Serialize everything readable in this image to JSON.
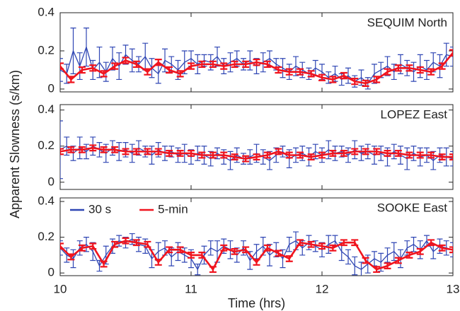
{
  "chart_data": [
    {
      "type": "line",
      "title": "SEQUIM North",
      "xlim": [
        10,
        13
      ],
      "ylim": [
        -0.015,
        0.4
      ],
      "yticks": [
        0,
        0.2,
        0.4
      ],
      "series": [
        {
          "color": "#2f46b4",
          "x": [
            10,
            10.05,
            10.1,
            10.15,
            10.2,
            10.25,
            10.3,
            10.35,
            10.4,
            10.45,
            10.5,
            10.55,
            10.6,
            10.65,
            10.7,
            10.75,
            10.8,
            10.85,
            10.9,
            10.95,
            11,
            11.05,
            11.1,
            11.15,
            11.2,
            11.25,
            11.3,
            11.35,
            11.4,
            11.45,
            11.5,
            11.55,
            11.6,
            11.65,
            11.7,
            11.75,
            11.8,
            11.85,
            11.9,
            11.95,
            12,
            12.05,
            12.1,
            12.15,
            12.2,
            12.25,
            12.3,
            12.35,
            12.4,
            12.45,
            12.5,
            12.55,
            12.6,
            12.65,
            12.7,
            12.75,
            12.8,
            12.85,
            12.9,
            12.95,
            13
          ],
          "values": [
            0.1,
            0.08,
            0.2,
            0.12,
            0.22,
            0.1,
            0.14,
            0.09,
            0.16,
            0.12,
            0.18,
            0.15,
            0.13,
            0.17,
            0.11,
            0.08,
            0.15,
            0.13,
            0.1,
            0.14,
            0.16,
            0.13,
            0.15,
            0.14,
            0.17,
            0.12,
            0.14,
            0.16,
            0.13,
            0.15,
            0.12,
            0.14,
            0.16,
            0.13,
            0.11,
            0.09,
            0.12,
            0.1,
            0.08,
            0.11,
            0.09,
            0.06,
            0.08,
            0.05,
            0.07,
            0.04,
            0.06,
            0.03,
            0.08,
            0.1,
            0.12,
            0.09,
            0.13,
            0.11,
            0.09,
            0.12,
            0.1,
            0.14,
            0.12,
            0.18,
            0.17
          ],
          "errors": [
            0.06,
            0.05,
            0.12,
            0.07,
            0.1,
            0.05,
            0.08,
            0.05,
            0.06,
            0.07,
            0.05,
            0.06,
            0.04,
            0.07,
            0.05,
            0.05,
            0.06,
            0.04,
            0.05,
            0.06,
            0.04,
            0.05,
            0.03,
            0.04,
            0.05,
            0.04,
            0.05,
            0.04,
            0.03,
            0.05,
            0.04,
            0.05,
            0.04,
            0.03,
            0.05,
            0.04,
            0.05,
            0.04,
            0.03,
            0.04,
            0.04,
            0.03,
            0.04,
            0.03,
            0.04,
            0.03,
            0.04,
            0.03,
            0.05,
            0.04,
            0.05,
            0.04,
            0.05,
            0.04,
            0.05,
            0.06,
            0.05,
            0.05,
            0.06,
            0.06,
            0.05
          ]
        },
        {
          "color": "#f0141e",
          "x": [
            10,
            10.083,
            10.167,
            10.25,
            10.333,
            10.417,
            10.5,
            10.583,
            10.667,
            10.75,
            10.833,
            10.917,
            11,
            11.083,
            11.167,
            11.25,
            11.333,
            11.417,
            11.5,
            11.583,
            11.667,
            11.75,
            11.833,
            11.917,
            12,
            12.083,
            12.167,
            12.25,
            12.333,
            12.417,
            12.5,
            12.583,
            12.667,
            12.75,
            12.833,
            12.917,
            13
          ],
          "values": [
            0.12,
            0.05,
            0.1,
            0.11,
            0.08,
            0.12,
            0.15,
            0.13,
            0.09,
            0.14,
            0.1,
            0.08,
            0.12,
            0.13,
            0.13,
            0.12,
            0.13,
            0.13,
            0.14,
            0.13,
            0.1,
            0.09,
            0.09,
            0.08,
            0.06,
            0.05,
            0.07,
            0.04,
            0.03,
            0.05,
            0.09,
            0.11,
            0.11,
            0.1,
            0.09,
            0.12,
            0.19
          ],
          "error": 0.015
        }
      ]
    },
    {
      "type": "line",
      "title": "LOPEZ East",
      "xlim": [
        10,
        13
      ],
      "ylim": [
        -0.04,
        0.43
      ],
      "yticks": [
        0,
        0.2,
        0.4
      ],
      "ylabel": "Apparent Slowness (s/km)",
      "series": [
        {
          "color": "#2f46b4",
          "x": [
            10,
            10.05,
            10.1,
            10.15,
            10.2,
            10.25,
            10.3,
            10.35,
            10.4,
            10.45,
            10.5,
            10.55,
            10.6,
            10.65,
            10.7,
            10.75,
            10.8,
            10.85,
            10.9,
            10.95,
            11,
            11.05,
            11.1,
            11.15,
            11.2,
            11.25,
            11.3,
            11.35,
            11.4,
            11.45,
            11.5,
            11.55,
            11.6,
            11.65,
            11.7,
            11.75,
            11.8,
            11.85,
            11.9,
            11.95,
            12,
            12.05,
            12.1,
            12.15,
            12.2,
            12.25,
            12.3,
            12.35,
            12.4,
            12.45,
            12.5,
            12.55,
            12.6,
            12.65,
            12.7,
            12.75,
            12.8,
            12.85,
            12.9,
            12.95,
            13
          ],
          "values": [
            0.18,
            0.2,
            0.16,
            0.19,
            0.17,
            0.2,
            0.18,
            0.16,
            0.19,
            0.17,
            0.18,
            0.16,
            0.19,
            0.17,
            0.15,
            0.18,
            0.16,
            0.17,
            0.15,
            0.16,
            0.14,
            0.16,
            0.15,
            0.13,
            0.16,
            0.14,
            0.12,
            0.15,
            0.13,
            0.14,
            0.16,
            0.14,
            0.12,
            0.15,
            0.17,
            0.13,
            0.15,
            0.16,
            0.14,
            0.17,
            0.15,
            0.18,
            0.16,
            0.17,
            0.15,
            0.18,
            0.16,
            0.17,
            0.15,
            0.16,
            0.14,
            0.17,
            0.15,
            0.13,
            0.16,
            0.14,
            0.15,
            0.12,
            0.15,
            0.14,
            0.13
          ],
          "errors": [
            0.16,
            0.05,
            0.04,
            0.06,
            0.04,
            0.05,
            0.04,
            0.05,
            0.04,
            0.05,
            0.04,
            0.05,
            0.04,
            0.03,
            0.05,
            0.04,
            0.04,
            0.03,
            0.04,
            0.05,
            0.04,
            0.04,
            0.05,
            0.04,
            0.03,
            0.04,
            0.05,
            0.04,
            0.03,
            0.04,
            0.05,
            0.04,
            0.05,
            0.04,
            0.03,
            0.05,
            0.04,
            0.04,
            0.05,
            0.04,
            0.04,
            0.05,
            0.04,
            0.03,
            0.04,
            0.05,
            0.04,
            0.04,
            0.05,
            0.04,
            0.05,
            0.04,
            0.05,
            0.06,
            0.04,
            0.05,
            0.04,
            0.05,
            0.04,
            0.05,
            0.04
          ]
        },
        {
          "color": "#f0141e",
          "x": [
            10,
            10.083,
            10.167,
            10.25,
            10.333,
            10.417,
            10.5,
            10.583,
            10.667,
            10.75,
            10.833,
            10.917,
            11,
            11.083,
            11.167,
            11.25,
            11.333,
            11.417,
            11.5,
            11.583,
            11.667,
            11.75,
            11.833,
            11.917,
            12,
            12.083,
            12.167,
            12.25,
            12.333,
            12.417,
            12.5,
            12.583,
            12.667,
            12.75,
            12.833,
            12.917,
            13
          ],
          "values": [
            0.17,
            0.18,
            0.18,
            0.19,
            0.18,
            0.18,
            0.17,
            0.17,
            0.17,
            0.17,
            0.16,
            0.16,
            0.16,
            0.15,
            0.15,
            0.15,
            0.14,
            0.13,
            0.14,
            0.15,
            0.17,
            0.15,
            0.15,
            0.14,
            0.15,
            0.16,
            0.16,
            0.17,
            0.17,
            0.17,
            0.16,
            0.16,
            0.15,
            0.15,
            0.15,
            0.14,
            0.14
          ],
          "error": 0.015
        }
      ]
    },
    {
      "type": "line",
      "title": "SOOKE East",
      "xlim": [
        10,
        13
      ],
      "ylim": [
        -0.015,
        0.42
      ],
      "yticks": [
        0,
        0.2,
        0.4
      ],
      "xticks": [
        10,
        11,
        12,
        13
      ],
      "xlabel": "Time (hrs)",
      "legend": "upper left",
      "series": [
        {
          "name": "30 s",
          "color": "#2f46b4",
          "x": [
            10,
            10.05,
            10.1,
            10.15,
            10.2,
            10.25,
            10.3,
            10.35,
            10.4,
            10.45,
            10.5,
            10.55,
            10.6,
            10.65,
            10.7,
            10.75,
            10.8,
            10.85,
            10.9,
            10.95,
            11,
            11.05,
            11.1,
            11.15,
            11.2,
            11.25,
            11.3,
            11.35,
            11.4,
            11.45,
            11.5,
            11.55,
            11.6,
            11.65,
            11.7,
            11.75,
            11.8,
            11.85,
            11.9,
            11.95,
            12,
            12.05,
            12.1,
            12.15,
            12.2,
            12.25,
            12.3,
            12.35,
            12.4,
            12.45,
            12.5,
            12.55,
            12.6,
            12.65,
            12.7,
            12.75,
            12.8,
            12.85,
            12.9,
            12.95,
            13
          ],
          "values": [
            0.14,
            0.1,
            0.08,
            0.14,
            0.16,
            0.12,
            0.04,
            0.1,
            0.15,
            0.18,
            0.17,
            0.19,
            0.16,
            0.15,
            0.08,
            0.12,
            0.14,
            0.09,
            0.12,
            0.1,
            0.08,
            0.02,
            0.1,
            0.14,
            0.12,
            0.15,
            0.13,
            0.1,
            0.14,
            0.07,
            0.12,
            0.15,
            0.1,
            0.13,
            0.08,
            0.16,
            0.18,
            0.14,
            0.17,
            0.15,
            0.13,
            0.16,
            0.18,
            0.12,
            0.09,
            0.04,
            0.02,
            0.05,
            0.08,
            0.06,
            0.1,
            0.12,
            0.08,
            0.14,
            0.16,
            0.13,
            0.18,
            0.12,
            0.15,
            0.14,
            0.13
          ],
          "errors": [
            0.04,
            0.04,
            0.05,
            0.04,
            0.04,
            0.05,
            0.03,
            0.05,
            0.04,
            0.03,
            0.03,
            0.03,
            0.04,
            0.04,
            0.05,
            0.05,
            0.04,
            0.05,
            0.05,
            0.04,
            0.05,
            0.03,
            0.05,
            0.04,
            0.06,
            0.04,
            0.05,
            0.04,
            0.04,
            0.05,
            0.04,
            0.05,
            0.06,
            0.04,
            0.05,
            0.04,
            0.05,
            0.04,
            0.04,
            0.03,
            0.04,
            0.05,
            0.03,
            0.05,
            0.04,
            0.05,
            0.04,
            0.05,
            0.04,
            0.05,
            0.04,
            0.05,
            0.05,
            0.04,
            0.04,
            0.05,
            0.03,
            0.04,
            0.04,
            0.04,
            0.04
          ]
        },
        {
          "name": "5-min",
          "color": "#f0141e",
          "x": [
            10,
            10.083,
            10.167,
            10.25,
            10.333,
            10.417,
            10.5,
            10.583,
            10.667,
            10.75,
            10.833,
            10.917,
            11,
            11.083,
            11.167,
            11.25,
            11.333,
            11.417,
            11.5,
            11.583,
            11.667,
            11.75,
            11.833,
            11.917,
            12,
            12.083,
            12.167,
            12.25,
            12.333,
            12.417,
            12.5,
            12.583,
            12.667,
            12.75,
            12.833,
            12.917,
            13
          ],
          "values": [
            0.15,
            0.09,
            0.14,
            0.15,
            0.05,
            0.16,
            0.18,
            0.17,
            0.16,
            0.06,
            0.13,
            0.13,
            0.1,
            0.1,
            0.02,
            0.14,
            0.12,
            0.13,
            0.06,
            0.14,
            0.11,
            0.08,
            0.17,
            0.16,
            0.15,
            0.14,
            0.17,
            0.17,
            0.07,
            0.02,
            0.04,
            0.07,
            0.1,
            0.12,
            0.17,
            0.14,
            0.13
          ],
          "error": 0.015
        }
      ]
    }
  ]
}
